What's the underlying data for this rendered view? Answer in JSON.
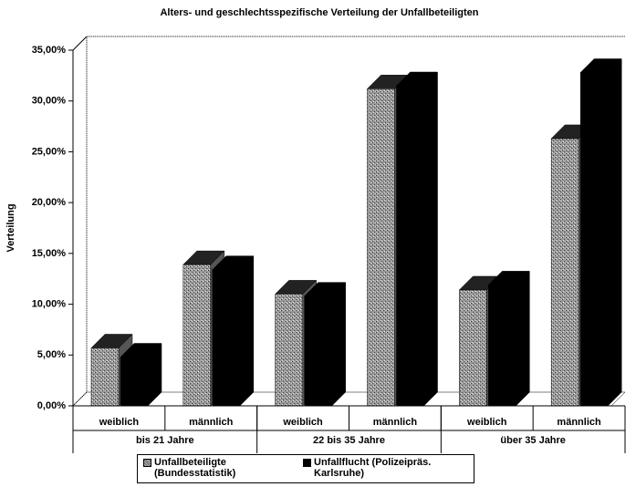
{
  "chart_data": {
    "type": "bar3d",
    "title": "Alters- und geschlechtsspezifische Verteilung der Unfallbeteiligten",
    "y_label": "Verteilung",
    "categories": [
      "weiblich",
      "männlich",
      "weiblich",
      "männlich",
      "weiblich",
      "männlich"
    ],
    "groups": [
      "bis 21 Jahre",
      "22 bis 35 Jahre",
      "über 35 Jahre"
    ],
    "series": [
      {
        "name": "Unfallbeteiligte (Bundesstatistik)",
        "color": "#999999",
        "values": [
          5.7,
          13.9,
          11.0,
          31.2,
          11.4,
          26.3
        ]
      },
      {
        "name": "Unfallflucht (Polizeipräs. Karlsruhe)",
        "color": "#000000",
        "values": [
          4.8,
          13.4,
          10.8,
          31.5,
          11.9,
          32.8
        ]
      }
    ],
    "ylim": [
      0,
      35
    ],
    "yticks": [
      {
        "value": 0,
        "label": "0,00%"
      },
      {
        "value": 5,
        "label": "5,00%"
      },
      {
        "value": 10,
        "label": "10,00%"
      },
      {
        "value": 15,
        "label": "15,00%"
      },
      {
        "value": 20,
        "label": "20,00%"
      },
      {
        "value": 25,
        "label": "25,00%"
      },
      {
        "value": 30,
        "label": "30,00%"
      },
      {
        "value": 35,
        "label": "35,00%"
      }
    ],
    "grid": false
  }
}
